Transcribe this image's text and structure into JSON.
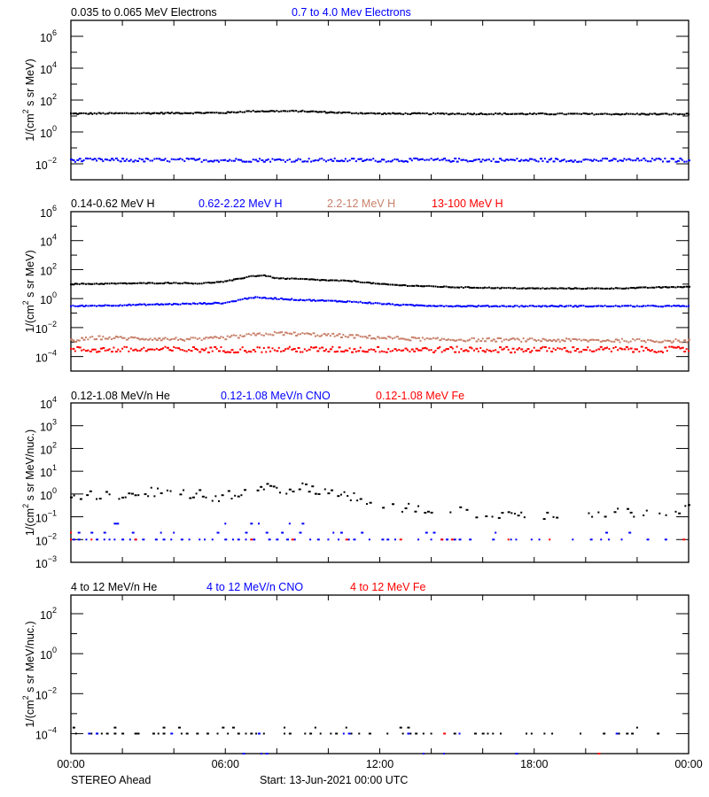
{
  "colors": {
    "black": "#000000",
    "blue": "#0000ff",
    "brown": "#c8806a",
    "red": "#ff0000"
  },
  "footer": {
    "instrument": "STEREO Ahead",
    "start": "Start: 13-Jun-2021 00:00 UTC"
  },
  "chart_data": [
    {
      "type": "scatter",
      "ylabel": {
        "pre": "1/(cm",
        "sup": "2",
        "post": " s sr MeV)"
      },
      "yscale": "log",
      "ylim": [
        0.001,
        10000000.0
      ],
      "ytick_exponents": [
        6,
        4,
        2,
        0,
        -2
      ],
      "minor_every_decade": true,
      "xlim_hours": [
        0,
        24
      ],
      "xtick_labels": [
        "00:00",
        "06:00",
        "12:00",
        "18:00",
        "00:00"
      ],
      "legend": [
        {
          "label": "0.035 to 0.065 MeV Electrons",
          "color": "black"
        },
        {
          "label": "0.7 to 4.0 Mev Electrons",
          "color": "blue"
        }
      ],
      "series": [
        {
          "name": "0.035 to 0.065 MeV Electrons",
          "color": "black",
          "kind": "dense",
          "jitter": 0.04,
          "trend": [
            [
              0,
              14
            ],
            [
              6,
              16
            ],
            [
              7,
              20
            ],
            [
              9,
              20
            ],
            [
              10,
              17
            ],
            [
              12,
              14
            ],
            [
              24,
              13
            ]
          ]
        },
        {
          "name": "0.7 to 4.0 Mev Electrons",
          "color": "blue",
          "kind": "dense",
          "jitter": 0.11,
          "trend": [
            [
              0,
              0.017
            ],
            [
              24,
              0.017
            ]
          ]
        }
      ]
    },
    {
      "type": "scatter",
      "ylabel": {
        "pre": "1/(cm",
        "sup": "2",
        "post": " s sr MeV)"
      },
      "yscale": "log",
      "ylim": [
        1e-05,
        1000000.0
      ],
      "ytick_exponents": [
        6,
        4,
        2,
        0,
        -2,
        -4
      ],
      "minor_every_decade": true,
      "xlim_hours": [
        0,
        24
      ],
      "legend": [
        {
          "label": "0.14-0.62 MeV H",
          "color": "black"
        },
        {
          "label": "0.62-2.22 MeV H",
          "color": "blue"
        },
        {
          "label": "2.2-12 MeV H",
          "color": "brown"
        },
        {
          "label": "13-100 MeV H",
          "color": "red"
        }
      ],
      "series": [
        {
          "name": "0.14-0.62 MeV H",
          "color": "black",
          "kind": "dense",
          "jitter": 0.03,
          "trend": [
            [
              0,
              10
            ],
            [
              2,
              11
            ],
            [
              4,
              12
            ],
            [
              5,
              11
            ],
            [
              6,
              15
            ],
            [
              7,
              35
            ],
            [
              7.5,
              40
            ],
            [
              8,
              25
            ],
            [
              9,
              22
            ],
            [
              10,
              18
            ],
            [
              11,
              16
            ],
            [
              12,
              10
            ],
            [
              13,
              8
            ],
            [
              15,
              6
            ],
            [
              18,
              5
            ],
            [
              21,
              5
            ],
            [
              22,
              5.5
            ],
            [
              24,
              6.5
            ]
          ]
        },
        {
          "name": "0.62-2.22 MeV H",
          "color": "blue",
          "kind": "dense",
          "jitter": 0.04,
          "trend": [
            [
              0,
              0.3
            ],
            [
              5,
              0.45
            ],
            [
              6,
              0.5
            ],
            [
              7,
              1.2
            ],
            [
              8,
              1.0
            ],
            [
              9,
              0.8
            ],
            [
              11,
              0.6
            ],
            [
              12,
              0.45
            ],
            [
              13,
              0.35
            ],
            [
              15,
              0.3
            ],
            [
              24,
              0.3
            ]
          ]
        },
        {
          "name": "2.2-12 MeV H",
          "color": "brown",
          "kind": "dense",
          "jitter": 0.12,
          "trend": [
            [
              0,
              0.0012
            ],
            [
              1,
              0.002
            ],
            [
              5,
              0.0015
            ],
            [
              6,
              0.002
            ],
            [
              7,
              0.003
            ],
            [
              8,
              0.004
            ],
            [
              10,
              0.003
            ],
            [
              12,
              0.002
            ],
            [
              14,
              0.0015
            ],
            [
              24,
              0.0012
            ]
          ]
        },
        {
          "name": "13-100 MeV H",
          "color": "red",
          "kind": "dense",
          "jitter": 0.2,
          "trend": [
            [
              0,
              0.0003
            ],
            [
              24,
              0.0003
            ]
          ]
        }
      ]
    },
    {
      "type": "scatter",
      "ylabel": {
        "pre": "1/(cm",
        "sup": "2",
        "post": " s sr MeV/nuc.)"
      },
      "yscale": "log",
      "ylim": [
        0.001,
        10000.0
      ],
      "ytick_exponents": [
        4,
        3,
        2,
        1,
        0,
        -1,
        -2,
        -3
      ],
      "minor_every_decade": false,
      "xlim_hours": [
        0,
        24
      ],
      "legend": [
        {
          "label": "0.12-1.08 MeV/n He",
          "color": "black"
        },
        {
          "label": "0.12-1.08 MeV/n CNO",
          "color": "blue"
        },
        {
          "label": "0.12-1.08 MeV Fe",
          "color": "red"
        }
      ],
      "series": [
        {
          "name": "0.12-1.08 MeV/n He",
          "color": "black",
          "kind": "sparse-dense",
          "jitter": 0.22,
          "trend": [
            [
              0,
              1.0
            ],
            [
              1,
              0.8
            ],
            [
              2,
              0.9
            ],
            [
              3,
              1.2
            ],
            [
              4,
              1.1
            ],
            [
              5,
              0.9
            ],
            [
              5.5,
              0.5
            ],
            [
              6,
              0.9
            ],
            [
              6.5,
              0.8
            ],
            [
              7,
              1.6
            ],
            [
              7.5,
              2
            ],
            [
              8,
              1.6
            ],
            [
              9,
              1.8
            ],
            [
              10,
              1.2
            ],
            [
              11,
              0.8
            ],
            [
              11.5,
              0.5
            ],
            [
              12,
              0.4
            ],
            [
              13,
              0.25
            ],
            [
              14,
              0.2
            ],
            [
              16,
              0.15
            ],
            [
              18,
              0.12
            ],
            [
              20,
              0.15
            ],
            [
              22,
              0.15
            ],
            [
              24,
              0.2
            ]
          ]
        },
        {
          "name": "0.12-1.08 MeV/n CNO",
          "color": "blue",
          "kind": "points",
          "points": {
            "0.01": [
              0.1,
              0.3,
              0.6,
              1.0,
              1.3,
              1.5,
              1.7,
              2.0,
              2.3,
              2.5,
              2.8,
              3.3,
              3.6,
              3.9,
              4.3,
              4.6,
              5.0,
              5.2,
              5.5,
              6.0,
              6.3,
              6.5,
              6.8,
              7.1,
              7.7,
              8.0,
              8.4,
              8.7,
              9.3,
              9.6,
              10.0,
              10.4,
              10.8,
              11.0,
              11.6,
              12.1,
              12.3,
              12.6,
              13.5,
              14.0,
              14.4,
              14.6,
              14.9,
              15.1,
              15.5,
              16.4,
              17.1,
              17.3,
              17.9,
              18.2,
              19.5,
              20.2,
              20.6,
              20.9,
              21.4,
              22.4,
              23.1
            ],
            "0.02": [
              0.3,
              0.8,
              1.3,
              2.4,
              3.5,
              4.0,
              5.7,
              6.8,
              7.6,
              8.2,
              8.9,
              10.2,
              10.5,
              11.3,
              13.8,
              14.1,
              16.5,
              20.8,
              21.7
            ],
            "0.05": [
              1.7,
              1.8,
              6.0,
              7.0,
              7.3,
              8.5,
              9.0
            ]
          }
        },
        {
          "name": "0.12-1.08 MeV Fe",
          "color": "red",
          "kind": "points",
          "points": {
            "0.01": [
              0.0,
              0.8,
              2.5,
              7.0,
              8.6,
              10.7,
              12.8,
              14.4,
              14.8,
              17.0,
              18.6,
              23.8
            ],
            "0.02": [
              0.0
            ]
          }
        }
      ]
    },
    {
      "type": "scatter",
      "ylabel": {
        "pre": "1/(cm",
        "sup": "2",
        "post": " s sr MeV/nuc.)"
      },
      "yscale": "log",
      "ylim": [
        1e-05,
        851
      ],
      "ytick_exponents": [
        2,
        0,
        -2,
        -4
      ],
      "minor_every_decade": true,
      "xlim_hours": [
        0,
        24
      ],
      "legend": [
        {
          "label": "4 to 12 MeV/n He",
          "color": "black"
        },
        {
          "label": "4 to 12 MeV/n CNO",
          "color": "blue"
        },
        {
          "label": "4 to 12 MeV Fe",
          "color": "red"
        }
      ],
      "series": [
        {
          "name": "4 to 12 MeV/n He",
          "color": "black",
          "kind": "points",
          "points": {
            "0.0001": [
              0.2,
              0.8,
              1.0,
              1.2,
              1.4,
              1.7,
              2.0,
              2.5,
              2.6,
              3.2,
              3.4,
              3.6,
              4.3,
              4.5,
              4.9,
              5.3,
              5.7,
              6.1,
              6.5,
              6.8,
              7.0,
              7.2,
              7.5,
              8.3,
              8.5,
              9.1,
              9.3,
              9.7,
              10.1,
              10.3,
              10.9,
              11.2,
              11.6,
              12.3,
              12.9,
              13.2,
              13.4,
              13.7,
              14.0,
              14.9,
              15.7,
              16.0,
              16.2,
              16.4,
              16.7,
              17.7,
              17.9,
              18.4,
              18.7,
              19.8,
              20.7,
              21.3,
              21.6,
              21.8,
              22.8
            ],
            "0.0002": [
              0.1,
              1.7,
              3.6,
              4.2,
              5.9,
              6.3,
              8.3,
              9.5,
              10.7,
              12.8,
              13.1,
              22.0
            ]
          }
        },
        {
          "name": "4 to 12 MeV/n CNO",
          "color": "blue",
          "kind": "points",
          "points": {
            "0.0001": [
              0.7,
              1.0,
              3.9,
              7.3,
              10.6,
              10.8,
              13.1,
              15.1,
              21.2
            ],
            "0.00001": [
              6.7,
              7.4,
              7.6,
              13.7,
              14.5,
              17.3
            ]
          }
        },
        {
          "name": "4 to 12 MeV Fe",
          "color": "red",
          "kind": "points",
          "points": {
            "0.0001": [
              14.5
            ],
            "0.00001": [
              20.5
            ]
          }
        }
      ]
    }
  ]
}
